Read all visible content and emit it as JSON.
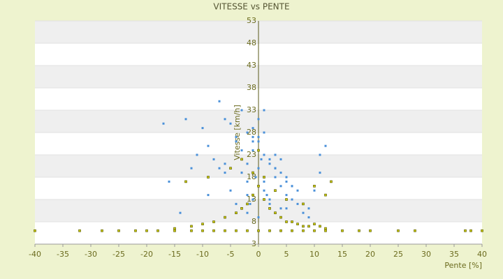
{
  "chart_data": {
    "type": "scatter",
    "title": "VITESSE vs PENTE",
    "x_label": "Pente [%]",
    "y_label": "Vitesse [km/h]",
    "xlim": [
      -40,
      40
    ],
    "xticks": [
      -40,
      -35,
      -30,
      -25,
      -20,
      -15,
      -10,
      -5,
      0,
      5,
      10,
      15,
      20,
      25,
      30,
      35,
      40
    ],
    "ylim": [
      3,
      53
    ],
    "yticks": [
      3,
      8,
      13,
      18,
      23,
      28,
      33,
      38,
      43,
      48,
      53
    ],
    "grid": true,
    "series": [
      {
        "color": "#4a90d9",
        "x": [
          -7,
          -6,
          -5,
          -4,
          -3,
          -2,
          -1,
          0,
          1,
          2,
          3,
          4,
          5,
          6,
          -8,
          -9,
          -10,
          -11,
          -12,
          -13,
          -17,
          -16,
          -5,
          -3,
          -2,
          -1,
          0,
          1,
          2,
          3,
          4,
          5,
          6,
          7,
          8,
          9,
          10,
          11,
          12,
          -4,
          -2,
          0,
          2,
          4,
          -6,
          -3,
          -1,
          1,
          3,
          5,
          -2,
          0,
          2,
          -1,
          1,
          0,
          0.5,
          -0.5,
          1.5,
          -1.5,
          0,
          3,
          -3,
          6,
          -6,
          9,
          -9,
          4,
          -4,
          2,
          -2,
          7,
          -7,
          11,
          -14,
          0,
          1,
          -1,
          2,
          5
        ],
        "values": [
          35,
          31,
          30,
          27,
          33,
          28,
          26,
          24,
          23,
          22,
          20,
          19,
          18,
          16,
          22,
          25,
          29,
          23,
          20,
          31,
          30,
          17,
          15,
          19,
          21,
          24,
          26,
          28,
          21,
          18,
          16,
          14,
          13,
          12,
          10,
          9,
          15,
          19,
          25,
          12,
          14,
          16,
          12,
          11,
          19,
          24,
          29,
          33,
          20,
          17,
          10,
          9,
          11,
          13,
          15,
          20,
          22,
          18,
          14,
          12,
          27,
          23,
          19,
          16,
          21,
          11,
          14,
          22,
          26,
          13,
          17,
          15,
          20,
          23,
          10,
          31,
          17,
          27,
          13,
          11
        ]
      },
      {
        "color": "#c8c800",
        "x": [
          -40,
          -32,
          -28,
          -25,
          -22,
          -20,
          -18,
          -15,
          -12,
          -10,
          -8,
          -6,
          -4,
          -2,
          0,
          2,
          4,
          6,
          8,
          10,
          12,
          15,
          18,
          20,
          25,
          28,
          37,
          38,
          40,
          -15,
          -12,
          -10,
          -8,
          -6,
          -4,
          -3,
          -2,
          -1,
          0,
          1,
          2,
          3,
          4,
          5,
          6,
          7,
          8,
          9,
          10,
          11,
          12,
          -13,
          -9,
          -5,
          -3,
          -1,
          0,
          1,
          3,
          5,
          8,
          10,
          12,
          13
        ],
        "values": [
          6,
          6,
          6,
          6,
          6,
          6,
          6,
          6,
          6,
          6,
          6,
          6,
          6,
          6,
          6,
          6,
          6,
          6,
          6,
          6,
          6,
          6,
          6,
          6,
          6,
          6,
          6,
          6,
          6,
          6.5,
          7,
          7.5,
          8,
          9,
          10,
          11,
          12,
          14,
          16,
          13,
          11,
          10,
          9,
          8,
          8,
          7.5,
          7,
          7,
          7.5,
          7,
          6.5,
          17,
          18,
          20,
          22,
          19,
          24,
          18,
          15,
          13,
          12,
          16,
          14,
          17
        ]
      }
    ]
  }
}
